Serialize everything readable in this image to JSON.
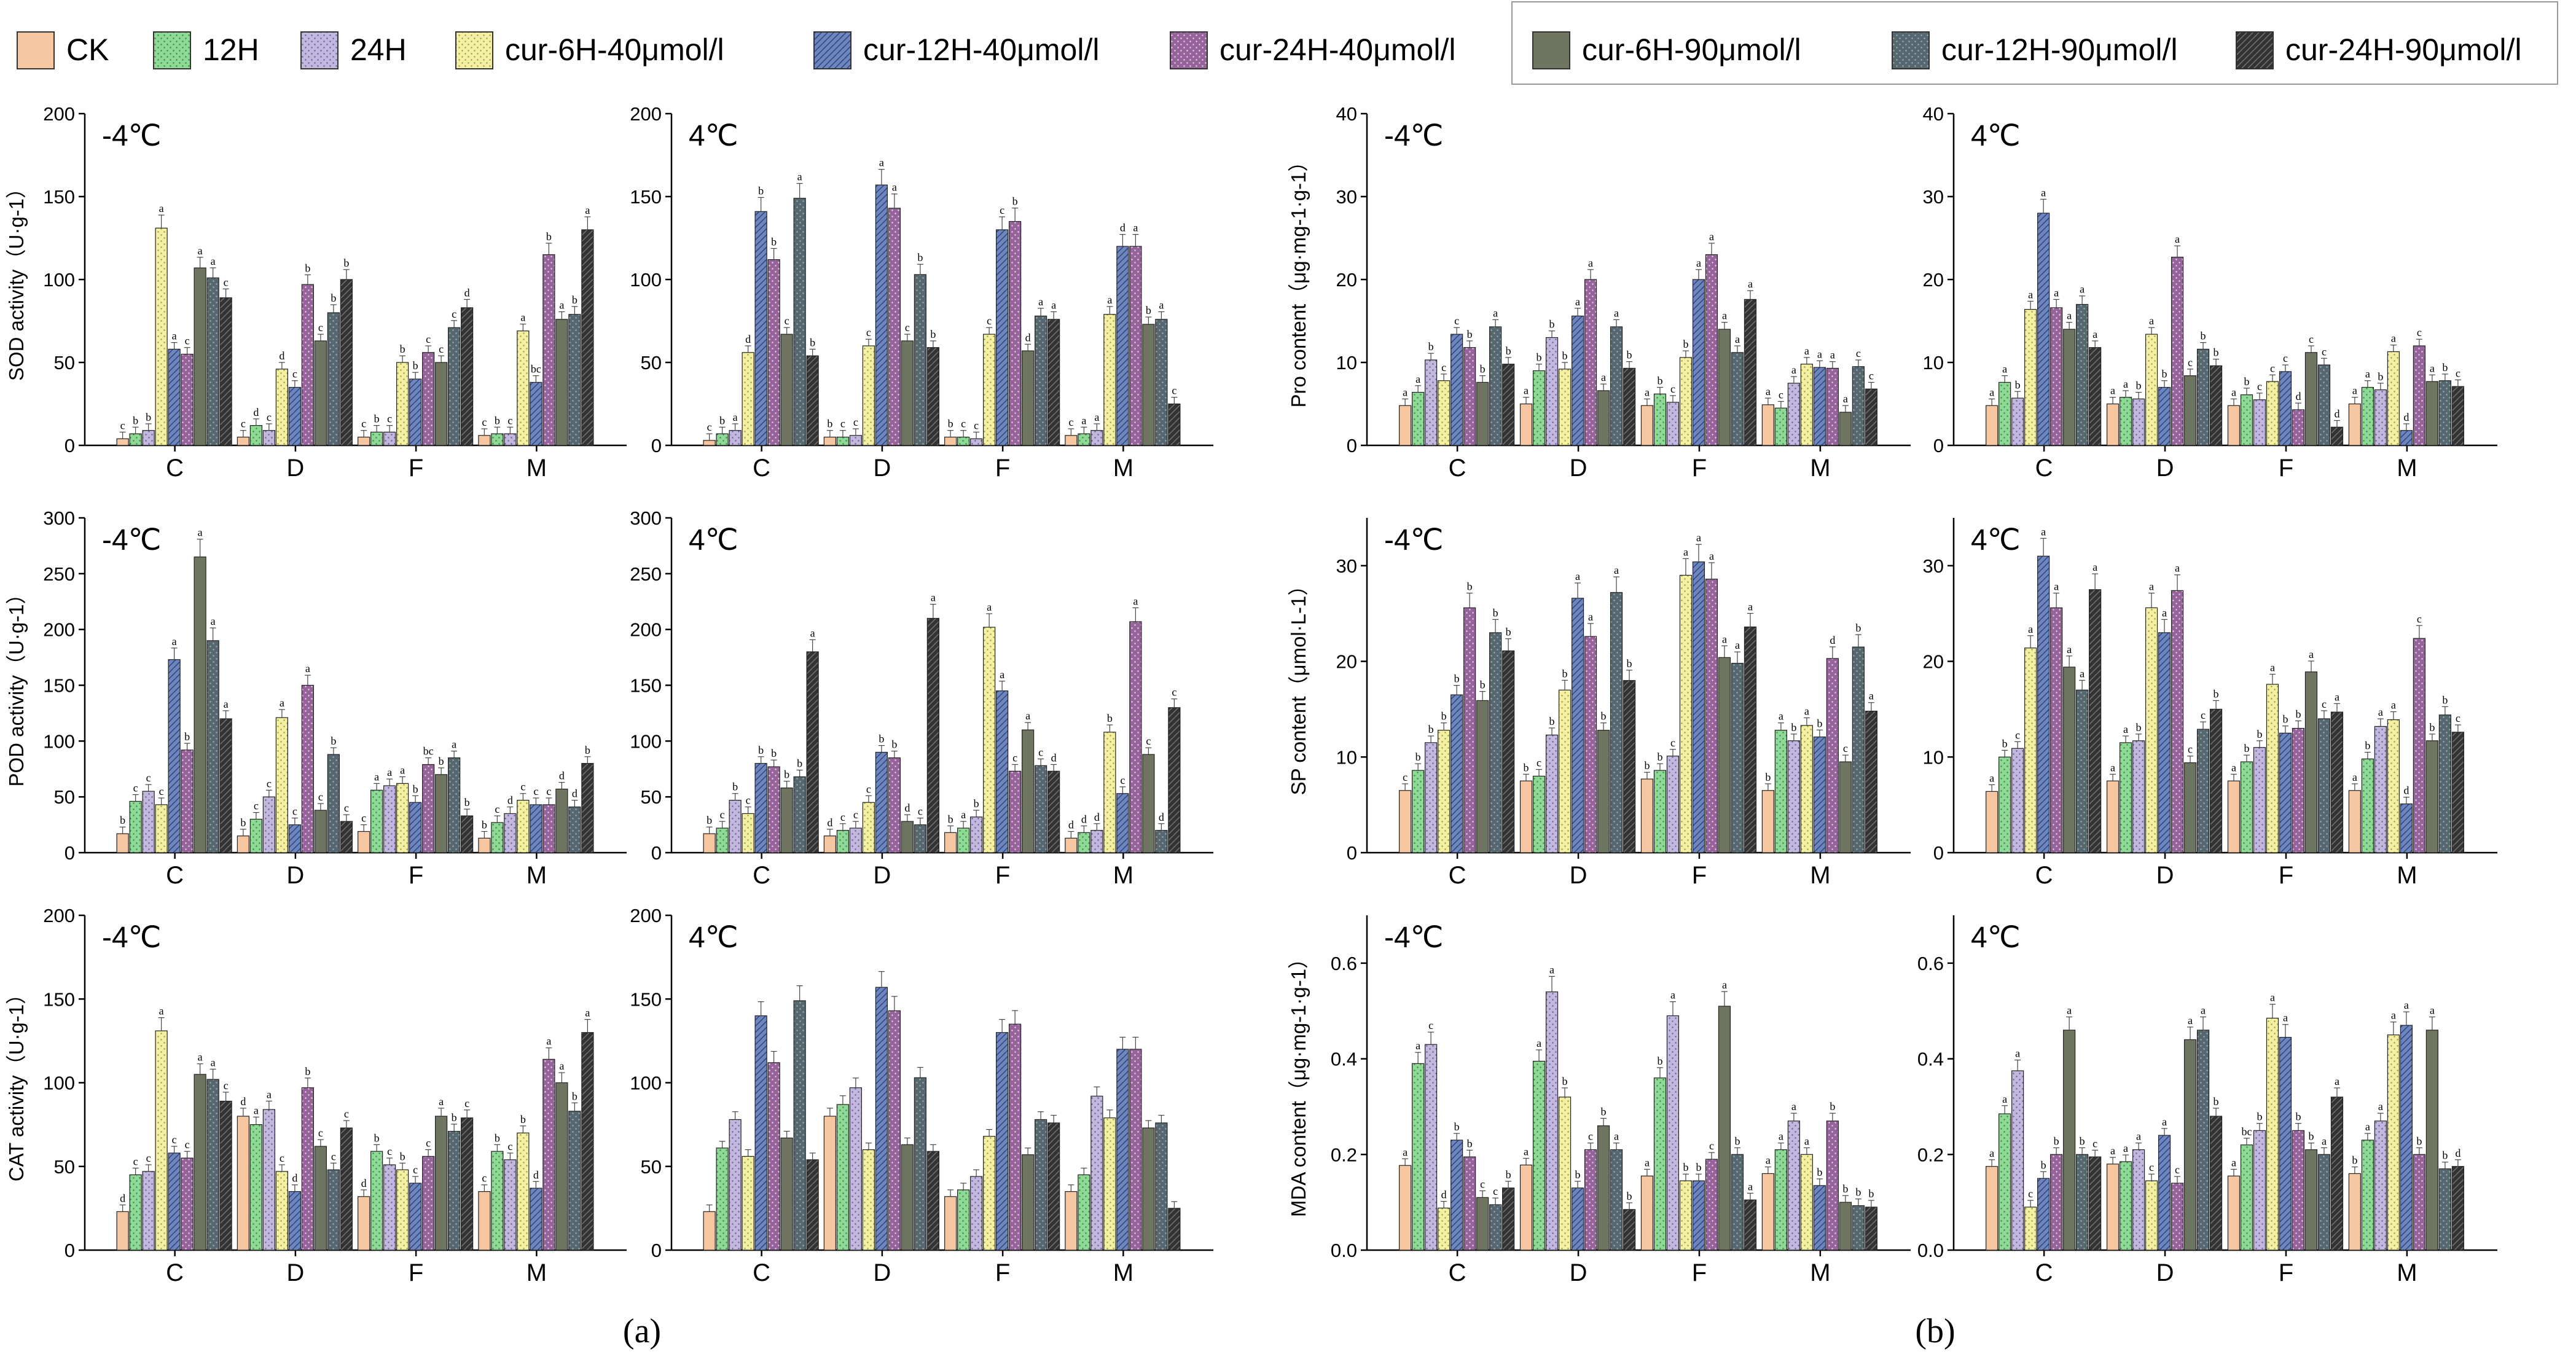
{
  "figure_labels": [
    "(a)",
    "(b)"
  ],
  "legend": [
    {
      "name": "CK",
      "color": "#f6c6a1"
    },
    {
      "name": "12H",
      "color": "#8fd896"
    },
    {
      "name": "24H",
      "color": "#c2b7dc"
    },
    {
      "name": "cur-6H-40μmol/l",
      "color": "#f4f0a2"
    },
    {
      "name": "cur-12H-40μmol/l",
      "color": "#6d86c0"
    },
    {
      "name": "cur-24H-40μmol/l",
      "color": "#96649a"
    },
    {
      "name": "cur-6H-90μmol/l",
      "color": "#6e7561"
    },
    {
      "name": "cur-12H-90μmol/l",
      "color": "#56676f"
    },
    {
      "name": "cur-24H-90μmol/l",
      "color": "#333333"
    }
  ],
  "chart_data": [
    {
      "id": "sod-m4",
      "type": "bar",
      "title": "-4℃",
      "ylabel": "SOD activity（U·g-1）",
      "ylim": [
        0,
        200
      ],
      "yticks": [
        0,
        50,
        100,
        150,
        200
      ],
      "categories": [
        "C",
        "D",
        "F",
        "M"
      ],
      "values": [
        [
          4,
          7,
          9,
          131,
          58,
          55,
          107,
          101,
          89
        ],
        [
          5,
          12,
          9,
          46,
          35,
          97,
          63,
          80,
          100
        ],
        [
          5,
          8,
          8,
          50,
          40,
          56,
          50,
          71,
          83
        ],
        [
          6,
          7,
          7,
          69,
          38,
          115,
          76,
          79,
          130
        ]
      ],
      "letters": [
        [
          "c",
          "b",
          "b",
          "a",
          "a",
          "c",
          "a",
          "a",
          "c"
        ],
        [
          "c",
          "d",
          "c",
          "d",
          "c",
          "b",
          "c",
          "b",
          "b"
        ],
        [
          "c",
          "b",
          "c",
          "b",
          "b",
          "c",
          "c",
          "c",
          "d"
        ],
        [
          "c",
          "b",
          "c",
          "a",
          "bc",
          "b",
          "a",
          "b",
          "a"
        ]
      ]
    },
    {
      "id": "sod-p4",
      "type": "bar",
      "title": "4℃",
      "ylabel": "",
      "ylim": [
        0,
        200
      ],
      "yticks": [
        0,
        50,
        100,
        150,
        200
      ],
      "categories": [
        "C",
        "D",
        "F",
        "M"
      ],
      "values": [
        [
          3,
          7,
          9,
          56,
          141,
          112,
          67,
          149,
          54
        ],
        [
          5,
          5,
          6,
          60,
          157,
          143,
          63,
          103,
          59
        ],
        [
          5,
          5,
          4,
          67,
          130,
          135,
          57,
          78,
          76
        ],
        [
          6,
          7,
          9,
          79,
          120,
          120,
          73,
          76,
          25
        ]
      ],
      "letters": [
        [
          "c",
          "b",
          "a",
          "d",
          "b",
          "b",
          "c",
          "a",
          "b"
        ],
        [
          "b",
          "c",
          "c",
          "c",
          "a",
          "a",
          "c",
          "b",
          "b"
        ],
        [
          "b",
          "c",
          "c",
          "c",
          "c",
          "b",
          "d",
          "a",
          "a"
        ],
        [
          "c",
          "a",
          "a",
          "a",
          "d",
          "a",
          "b",
          "a",
          "c"
        ]
      ]
    },
    {
      "id": "pro-m4",
      "type": "bar",
      "title": "-4℃",
      "ylabel": "Pro content（μg·mg-1·g-1）",
      "ylim": [
        0,
        40
      ],
      "yticks": [
        0,
        10,
        20,
        30,
        40
      ],
      "categories": [
        "C",
        "D",
        "F",
        "M"
      ],
      "values": [
        [
          4.8,
          6.4,
          10.3,
          7.8,
          13.4,
          11.8,
          7.6,
          14.3,
          9.8
        ],
        [
          5.0,
          9.0,
          13.0,
          9.2,
          15.6,
          20.0,
          6.6,
          14.3,
          9.3
        ],
        [
          4.8,
          6.2,
          5.2,
          10.6,
          20.0,
          23.0,
          14.0,
          11.2,
          17.6
        ],
        [
          4.9,
          4.5,
          7.5,
          9.8,
          9.4,
          9.3,
          4.0,
          9.5,
          6.8
        ]
      ],
      "letters": [
        [
          "a",
          "a",
          "b",
          "c",
          "c",
          "b",
          "b",
          "a",
          "b"
        ],
        [
          "a",
          "b",
          "b",
          "b",
          "a",
          "a",
          "a",
          "a",
          "b"
        ],
        [
          "a",
          "b",
          "c",
          "b",
          "a",
          "a",
          "a",
          "a",
          "a"
        ],
        [
          "a",
          "c",
          "a",
          "a",
          "a",
          "a",
          "a",
          "c",
          "c"
        ]
      ]
    },
    {
      "id": "pro-p4",
      "type": "bar",
      "title": "4℃",
      "ylabel": "",
      "ylim": [
        0,
        40
      ],
      "yticks": [
        0,
        10,
        20,
        30,
        40
      ],
      "categories": [
        "C",
        "D",
        "F",
        "M"
      ],
      "values": [
        [
          4.8,
          7.6,
          5.7,
          16.4,
          28.0,
          16.6,
          14.0,
          17.0,
          11.8
        ],
        [
          5.0,
          5.8,
          5.6,
          13.4,
          7.0,
          22.7,
          8.4,
          11.6,
          9.6
        ],
        [
          4.8,
          6.1,
          5.5,
          7.7,
          8.9,
          4.3,
          11.2,
          9.7,
          2.2
        ],
        [
          5.0,
          7.0,
          6.7,
          11.3,
          1.8,
          12.0,
          7.7,
          7.8,
          7.1
        ]
      ],
      "letters": [
        [
          "a",
          "a",
          "b",
          "a",
          "a",
          "a",
          "a",
          "a",
          "a"
        ],
        [
          "a",
          "a",
          "b",
          "a",
          "b",
          "a",
          "c",
          "b",
          "b"
        ],
        [
          "a",
          "b",
          "c",
          "c",
          "c",
          "d",
          "c",
          "c",
          "d"
        ],
        [
          "a",
          "a",
          "b",
          "a",
          "d",
          "c",
          "a",
          "b",
          "c"
        ]
      ]
    },
    {
      "id": "pod-m4",
      "type": "bar",
      "title": "-4℃",
      "ylabel": "POD activity（U·g-1）",
      "ylim": [
        0,
        300
      ],
      "yticks": [
        0,
        50,
        100,
        150,
        200,
        250,
        300
      ],
      "categories": [
        "C",
        "D",
        "F",
        "M"
      ],
      "values": [
        [
          17,
          46,
          55,
          43,
          173,
          92,
          265,
          190,
          120
        ],
        [
          15,
          30,
          50,
          121,
          25,
          150,
          38,
          88,
          28
        ],
        [
          19,
          56,
          60,
          62,
          45,
          79,
          70,
          85,
          33
        ],
        [
          13,
          27,
          35,
          47,
          43,
          43,
          57,
          41,
          80
        ]
      ],
      "letters": [
        [
          "b",
          "c",
          "c",
          "c",
          "a",
          "b",
          "a",
          "a",
          "a"
        ],
        [
          "b",
          "c",
          "c",
          "a",
          "c",
          "a",
          "c",
          "b",
          "c"
        ],
        [
          "c",
          "a",
          "a",
          "a",
          "b",
          "bc",
          "b",
          "a",
          "b"
        ],
        [
          "b",
          "c",
          "d",
          "c",
          "c",
          "c",
          "d",
          "d",
          "b"
        ]
      ]
    },
    {
      "id": "pod-p4",
      "type": "bar",
      "title": "4℃",
      "ylabel": "",
      "ylim": [
        0,
        300
      ],
      "yticks": [
        0,
        50,
        100,
        150,
        200,
        250,
        300
      ],
      "categories": [
        "C",
        "D",
        "F",
        "M"
      ],
      "values": [
        [
          17,
          22,
          47,
          35,
          80,
          77,
          58,
          68,
          180
        ],
        [
          15,
          20,
          22,
          45,
          90,
          85,
          28,
          25,
          210
        ],
        [
          18,
          22,
          32,
          202,
          145,
          73,
          110,
          78,
          73
        ],
        [
          13,
          18,
          20,
          108,
          53,
          207,
          88,
          20,
          130
        ]
      ],
      "letters": [
        [
          "b",
          "c",
          "b",
          "c",
          "b",
          "b",
          "b",
          "b",
          "a"
        ],
        [
          "d",
          "c",
          "c",
          "c",
          "b",
          "b",
          "d",
          "c",
          "a"
        ],
        [
          "b",
          "a",
          "b",
          "a",
          "a",
          "c",
          "a",
          "c",
          "d"
        ],
        [
          "d",
          "d",
          "d",
          "b",
          "c",
          "a",
          "c",
          "d",
          "c"
        ]
      ]
    },
    {
      "id": "sp-m4",
      "type": "bar",
      "title": "-4℃",
      "ylabel": "SP content（μmol·L-1）",
      "ylim": [
        0,
        35
      ],
      "yticks": [
        0,
        10,
        20,
        30
      ],
      "categories": [
        "C",
        "D",
        "F",
        "M"
      ],
      "values": [
        [
          6.5,
          8.6,
          11.5,
          12.8,
          16.5,
          25.6,
          15.9,
          23.0,
          21.1
        ],
        [
          7.5,
          8.0,
          12.3,
          17.0,
          26.6,
          22.6,
          12.8,
          27.2,
          18.0
        ],
        [
          7.7,
          8.6,
          10.1,
          29.0,
          30.4,
          28.6,
          20.4,
          19.8,
          23.6
        ],
        [
          6.5,
          12.8,
          11.7,
          13.3,
          12.1,
          20.3,
          9.5,
          21.5,
          14.8
        ]
      ],
      "letters": [
        [
          "c",
          "b",
          "b",
          "b",
          "b",
          "b",
          "b",
          "b",
          "b"
        ],
        [
          "b",
          "c",
          "b",
          "b",
          "a",
          "a",
          "b",
          "a",
          "b"
        ],
        [
          "b",
          "b",
          "c",
          "a",
          "a",
          "a",
          "a",
          "a",
          "a"
        ],
        [
          "b",
          "a",
          "b",
          "a",
          "b",
          "d",
          "c",
          "b",
          "a"
        ]
      ]
    },
    {
      "id": "sp-p4",
      "type": "bar",
      "title": "4℃",
      "ylabel": "",
      "ylim": [
        0,
        35
      ],
      "yticks": [
        0,
        10,
        20,
        30
      ],
      "categories": [
        "C",
        "D",
        "F",
        "M"
      ],
      "values": [
        [
          6.4,
          10.0,
          10.9,
          21.4,
          31.0,
          25.6,
          19.4,
          17.0,
          27.5
        ],
        [
          7.5,
          11.5,
          11.7,
          25.6,
          23.0,
          27.4,
          9.4,
          12.9,
          15.0
        ],
        [
          7.5,
          9.5,
          11.0,
          17.6,
          12.5,
          13.0,
          18.9,
          14.0,
          14.7
        ],
        [
          6.5,
          9.8,
          13.2,
          13.9,
          5.1,
          22.4,
          11.7,
          14.4,
          12.6
        ]
      ],
      "letters": [
        [
          "a",
          "b",
          "c",
          "a",
          "a",
          "a",
          "a",
          "a",
          "a"
        ],
        [
          "a",
          "a",
          "b",
          "a",
          "a",
          "a",
          "c",
          "c",
          "b"
        ],
        [
          "a",
          "b",
          "b",
          "a",
          "b",
          "b",
          "a",
          "c",
          "a"
        ],
        [
          "a",
          "b",
          "a",
          "a",
          "d",
          "c",
          "b",
          "b",
          "c"
        ]
      ]
    },
    {
      "id": "cat-m4",
      "type": "bar",
      "title": "-4℃",
      "ylabel": "CAT activity（U·g-1）",
      "ylim": [
        0,
        200
      ],
      "yticks": [
        0,
        50,
        100,
        150,
        200
      ],
      "categories": [
        "C",
        "D",
        "F",
        "M"
      ],
      "values": [
        [
          23,
          45,
          47,
          131,
          58,
          55,
          105,
          102,
          89
        ],
        [
          80,
          75,
          84,
          47,
          35,
          97,
          62,
          48,
          73
        ],
        [
          32,
          59,
          51,
          48,
          40,
          56,
          80,
          71,
          79
        ],
        [
          35,
          59,
          54,
          70,
          37,
          114,
          100,
          83,
          130
        ]
      ],
      "letters": [
        [
          "d",
          "c",
          "c",
          "a",
          "c",
          "c",
          "a",
          "a",
          "c"
        ],
        [
          "d",
          "a",
          "a",
          "c",
          "d",
          "b",
          "c",
          "c",
          "c"
        ],
        [
          "d",
          "b",
          "c",
          "b",
          "c",
          "c",
          "a",
          "b",
          "c"
        ],
        [
          "c",
          "b",
          "c",
          "b",
          "d",
          "a",
          "a",
          "b",
          "a"
        ]
      ]
    },
    {
      "id": "cat-p4",
      "type": "bar",
      "title": "4℃",
      "ylabel": "",
      "ylim": [
        0,
        200
      ],
      "yticks": [
        0,
        50,
        100,
        150,
        200
      ],
      "categories": [
        "C",
        "D",
        "F",
        "M"
      ],
      "values": [
        [
          23,
          61,
          78,
          56,
          140,
          112,
          67,
          149,
          54
        ],
        [
          80,
          87,
          97,
          60,
          157,
          143,
          63,
          103,
          59
        ],
        [
          32,
          36,
          44,
          68,
          130,
          135,
          57,
          78,
          76
        ],
        [
          35,
          45,
          92,
          79,
          120,
          120,
          73,
          76,
          25
        ]
      ]
    },
    {
      "id": "mda-m4",
      "type": "bar",
      "title": "-4℃",
      "ylabel": "MDA content（μg·mg-1·g-1）",
      "ylim": [
        0,
        0.7
      ],
      "yticks": [
        0.0,
        0.2,
        0.4,
        0.6
      ],
      "categories": [
        "C",
        "D",
        "F",
        "M"
      ],
      "values": [
        [
          0.177,
          0.39,
          0.43,
          0.088,
          0.23,
          0.195,
          0.11,
          0.095,
          0.13
        ],
        [
          0.178,
          0.395,
          0.54,
          0.32,
          0.13,
          0.21,
          0.26,
          0.21,
          0.085
        ],
        [
          0.155,
          0.36,
          0.49,
          0.145,
          0.145,
          0.19,
          0.51,
          0.2,
          0.105
        ],
        [
          0.16,
          0.21,
          0.27,
          0.2,
          0.135,
          0.27,
          0.1,
          0.093,
          0.09
        ]
      ],
      "letters": [
        [
          "a",
          "a",
          "c",
          "d",
          "b",
          "b",
          "c",
          "c",
          "b"
        ],
        [
          "a",
          "a",
          "a",
          "b",
          "b",
          "c",
          "b",
          "a",
          "b"
        ],
        [
          "a",
          "b",
          "a",
          "b",
          "b",
          "c",
          "a",
          "b",
          "a"
        ],
        [
          "a",
          "a",
          "a",
          "a",
          "b",
          "b",
          "b",
          "b",
          "b"
        ]
      ]
    },
    {
      "id": "mda-p4",
      "type": "bar",
      "title": "4℃",
      "ylabel": "",
      "ylim": [
        0,
        0.7
      ],
      "yticks": [
        0.0,
        0.2,
        0.4,
        0.6
      ],
      "categories": [
        "C",
        "D",
        "F",
        "M"
      ],
      "values": [
        [
          0.175,
          0.285,
          0.375,
          0.09,
          0.15,
          0.2,
          0.46,
          0.2,
          0.195
        ],
        [
          0.18,
          0.185,
          0.21,
          0.145,
          0.24,
          0.14,
          0.44,
          0.46,
          0.28
        ],
        [
          0.155,
          0.22,
          0.25,
          0.485,
          0.445,
          0.25,
          0.21,
          0.2,
          0.32
        ],
        [
          0.16,
          0.23,
          0.27,
          0.45,
          0.47,
          0.2,
          0.46,
          0.17,
          0.175
        ]
      ],
      "letters": [
        [
          "a",
          "a",
          "a",
          "c",
          "b",
          "b",
          "a",
          "b",
          "c"
        ],
        [
          "a",
          "a",
          "a",
          "c",
          "a",
          "c",
          "a",
          "a",
          "b"
        ],
        [
          "a",
          "bc",
          "b",
          "a",
          "a",
          "b",
          "b",
          "a",
          "a"
        ],
        [
          "b",
          "a",
          "a",
          "a",
          "a",
          "b",
          "a",
          "b",
          "d"
        ]
      ]
    }
  ]
}
